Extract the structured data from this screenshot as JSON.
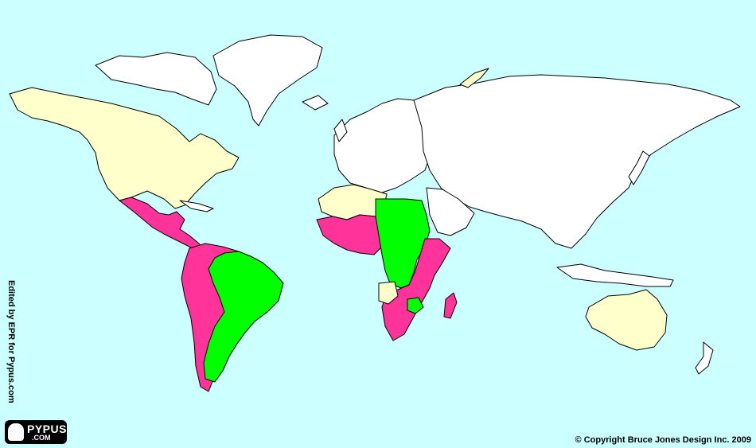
{
  "credit": {
    "side_text": "Edited by EPR for Pypus.com",
    "copyright": "© Copyright Bruce Jones Design Inc. 2009"
  },
  "logo": {
    "name": "PYPUS",
    "domain": ".COM"
  },
  "colors": {
    "ocean": "#ccffff",
    "pink": "#ff3399",
    "green": "#00ff00",
    "cream": "#ffffcc",
    "white": "#ffffff",
    "border": "#000000"
  }
}
